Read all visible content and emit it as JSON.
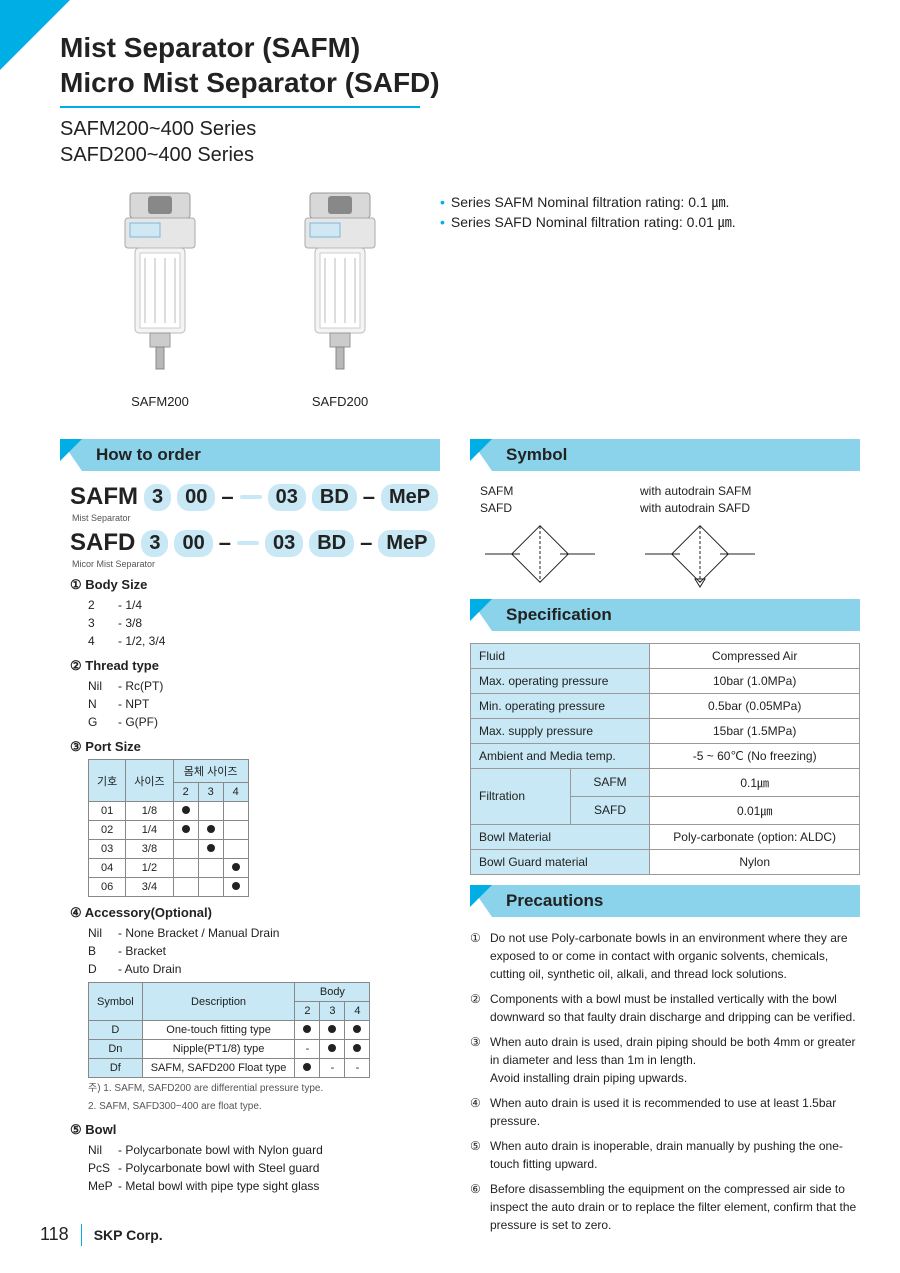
{
  "title_line1": "Mist Separator (SAFM)",
  "title_line2": "Micro Mist Separator (SAFD)",
  "subtitle_line1": "SAFM200~400 Series",
  "subtitle_line2": "SAFD200~400 Series",
  "top_bullets": [
    "Series SAFM Nominal filtration rating: 0.1 ㎛.",
    "Series SAFD Nominal filtration rating: 0.01 ㎛."
  ],
  "product_labels": [
    "SAFM200",
    "SAFD200"
  ],
  "sections": {
    "how_to_order": "How to order",
    "symbol": "Symbol",
    "specification": "Specification",
    "precautions": "Precautions"
  },
  "models": [
    {
      "name": "SAFM",
      "sub": "Mist Separator",
      "parts": [
        "3",
        "00",
        "03",
        "BD",
        "MeP"
      ]
    },
    {
      "name": "SAFD",
      "sub": "Micor Mist Separator",
      "parts": [
        "3",
        "00",
        "03",
        "BD",
        "MeP"
      ]
    }
  ],
  "legend1": {
    "num": "①",
    "title": "Body Size",
    "rows": [
      {
        "k": "2",
        "v": "- 1/4"
      },
      {
        "k": "3",
        "v": "- 3/8"
      },
      {
        "k": "4",
        "v": "- 1/2, 3/4"
      }
    ]
  },
  "legend2": {
    "num": "②",
    "title": "Thread type",
    "rows": [
      {
        "k": "Nil",
        "v": "- Rc(PT)"
      },
      {
        "k": "N",
        "v": "- NPT"
      },
      {
        "k": "G",
        "v": "- G(PF)"
      }
    ]
  },
  "legend3": {
    "num": "③",
    "title": "Port Size",
    "table": {
      "head1": [
        "기호",
        "사이즈",
        "몸체 사이즈"
      ],
      "head2": [
        "2",
        "3",
        "4"
      ],
      "rows": [
        [
          "01",
          "1/8",
          "●",
          "",
          ""
        ],
        [
          "02",
          "1/4",
          "●",
          "●",
          ""
        ],
        [
          "03",
          "3/8",
          "",
          "●",
          ""
        ],
        [
          "04",
          "1/2",
          "",
          "",
          "●"
        ],
        [
          "06",
          "3/4",
          "",
          "",
          "●"
        ]
      ]
    }
  },
  "legend4": {
    "num": "④",
    "title": "Accessory(Optional)",
    "rows": [
      {
        "k": "Nil",
        "v": "- None Bracket / Manual Drain"
      },
      {
        "k": "B",
        "v": "- Bracket"
      },
      {
        "k": "D",
        "v": "- Auto Drain"
      }
    ],
    "table": {
      "head1": [
        "Symbol",
        "Description",
        "Body"
      ],
      "head2": [
        "2",
        "3",
        "4"
      ],
      "rows": [
        [
          "D",
          "One-touch fitting type",
          "●",
          "●",
          "●"
        ],
        [
          "Dn",
          "Nipple(PT1/8) type",
          "-",
          "●",
          "●"
        ],
        [
          "Df",
          "SAFM, SAFD200 Float type",
          "●",
          "-",
          "-"
        ]
      ]
    },
    "notes": [
      "주) 1. SAFM, SAFD200 are differential pressure type.",
      "    2. SAFM, SAFD300~400 are float type."
    ]
  },
  "legend5": {
    "num": "⑤",
    "title": "Bowl",
    "rows": [
      {
        "k": "Nil",
        "v": "- Polycarbonate bowl  with Nylon guard"
      },
      {
        "k": "PcS",
        "v": "- Polycarbonate bowl  with Steel guard"
      },
      {
        "k": "MeP",
        "v": "- Metal bowl with pipe type sight glass"
      }
    ]
  },
  "symbol_labels": {
    "left": [
      "SAFM",
      "SAFD"
    ],
    "right": [
      "with autodrain SAFM",
      "with autodrain SAFD"
    ]
  },
  "spec_rows": [
    [
      "Fluid",
      "Compressed Air"
    ],
    [
      "Max. operating pressure",
      "10bar (1.0MPa)"
    ],
    [
      "Min. operating pressure",
      "0.5bar (0.05MPa)"
    ],
    [
      "Max. supply pressure",
      "15bar (1.5MPa)"
    ],
    [
      "Ambient and Media temp.",
      "-5 ~ 60℃ (No freezing)"
    ]
  ],
  "spec_filtration": {
    "label": "Filtration",
    "rows": [
      [
        "SAFM",
        "0.1㎛"
      ],
      [
        "SAFD",
        "0.01㎛"
      ]
    ]
  },
  "spec_rows2": [
    [
      "Bowl Material",
      "Poly-carbonate  (option: ALDC)"
    ],
    [
      "Bowl Guard material",
      "Nylon"
    ]
  ],
  "precautions": [
    "Do not use Poly-carbonate bowls in an environment where they are exposed to or come in contact with organic solvents, chemicals, cutting oil, synthetic oil, alkali, and thread lock solutions.",
    "Components with a bowl must be installed vertically with the bowl downward so that faulty drain discharge and dripping can be verified.",
    "When auto drain is used, drain piping should be both 4mm or greater in diameter and less than 1m in length.\nAvoid installing drain piping upwards.",
    "When auto drain is used it is recommended to use at least 1.5bar pressure.",
    "When auto drain is inoperable, drain manually by pushing the one-touch fitting upward.",
    "Before disassembling the equipment on the compressed air side to inspect the auto drain or to replace the filter element, confirm that the pressure is set to zero."
  ],
  "precaution_nums": [
    "①",
    "②",
    "③",
    "④",
    "⑤",
    "⑥"
  ],
  "footer": {
    "page": "118",
    "corp": "SKP Corp."
  },
  "colors": {
    "accent": "#00aee6",
    "light": "#8bd3ea",
    "pill": "#c7e8f4"
  }
}
